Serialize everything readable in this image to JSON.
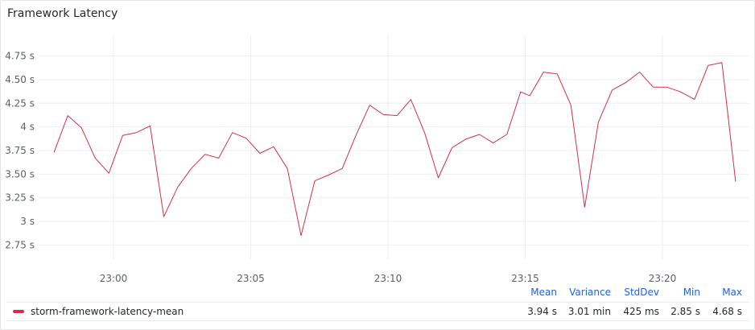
{
  "panel": {
    "title": "Framework Latency"
  },
  "colors": {
    "series": "#d1304a",
    "grid": "#eceef1",
    "header": "#1f62e0"
  },
  "chart_data": {
    "type": "line",
    "title": "Framework Latency",
    "x_axis": {
      "ticks": [
        "23:00",
        "23:05",
        "23:10",
        "23:15",
        "23:20"
      ]
    },
    "y_axis": {
      "ticks": [
        {
          "value": 2.75,
          "label": "2.75 s"
        },
        {
          "value": 3.0,
          "label": "3 s"
        },
        {
          "value": 3.25,
          "label": "3.25 s"
        },
        {
          "value": 3.5,
          "label": "3.50 s"
        },
        {
          "value": 3.75,
          "label": "3.75 s"
        },
        {
          "value": 4.0,
          "label": "4 s"
        },
        {
          "value": 4.25,
          "label": "4.25 s"
        },
        {
          "value": 4.5,
          "label": "4.50 s"
        },
        {
          "value": 4.75,
          "label": "4.75 s"
        }
      ],
      "ylim": [
        2.6,
        4.9
      ]
    },
    "grid": true,
    "series": [
      {
        "name": "storm-framework-latency-mean",
        "x": [
          "22:57:50",
          "22:58:20",
          "22:58:50",
          "22:59:20",
          "22:59:50",
          "23:00:20",
          "23:00:50",
          "23:01:20",
          "23:01:50",
          "23:02:20",
          "23:02:50",
          "23:03:20",
          "23:03:50",
          "23:04:20",
          "23:04:50",
          "23:05:20",
          "23:05:50",
          "23:06:20",
          "23:06:50",
          "23:07:20",
          "23:07:50",
          "23:08:20",
          "23:08:50",
          "23:09:20",
          "23:09:50",
          "23:10:20",
          "23:10:50",
          "23:11:20",
          "23:11:50",
          "23:12:20",
          "23:12:50",
          "23:13:20",
          "23:13:50",
          "23:14:20",
          "23:14:50",
          "23:15:10",
          "23:15:40",
          "23:16:10",
          "23:16:40",
          "23:17:10",
          "23:17:40",
          "23:18:10",
          "23:18:40",
          "23:19:10",
          "23:19:40",
          "23:20:10",
          "23:20:40",
          "23:21:10",
          "23:21:40",
          "23:22:10",
          "23:22:40"
        ],
        "values": [
          3.73,
          4.12,
          3.99,
          3.67,
          3.51,
          3.91,
          3.94,
          4.01,
          3.05,
          3.36,
          3.56,
          3.71,
          3.67,
          3.94,
          3.88,
          3.72,
          3.79,
          3.56,
          2.85,
          3.43,
          3.49,
          3.56,
          3.91,
          4.23,
          4.13,
          4.12,
          4.29,
          3.94,
          3.46,
          3.78,
          3.87,
          3.92,
          3.83,
          3.92,
          4.37,
          4.33,
          4.58,
          4.56,
          4.23,
          3.15,
          4.05,
          4.39,
          4.47,
          4.58,
          4.42,
          4.42,
          4.37,
          4.29,
          4.65,
          4.68,
          3.42
        ]
      }
    ],
    "legend": {
      "headers": [
        "Mean",
        "Variance",
        "StdDev",
        "Min",
        "Max"
      ],
      "rows": [
        {
          "name": "storm-framework-latency-mean",
          "values": [
            "3.94 s",
            "3.01 min",
            "425 ms",
            "2.85 s",
            "4.68 s"
          ]
        }
      ]
    }
  }
}
